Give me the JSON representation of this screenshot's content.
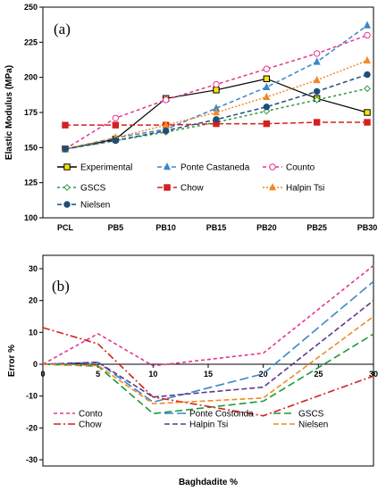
{
  "chart_data": [
    {
      "type": "line",
      "panel_label": "(a)",
      "ylabel": "Elastic Modulus (MPa)",
      "xlabel": "",
      "categories": [
        "PCL",
        "PB5",
        "PB10",
        "PB15",
        "PB20",
        "PB25",
        "PB30"
      ],
      "ylim": [
        100,
        250
      ],
      "yticks": [
        100,
        125,
        150,
        175,
        200,
        225,
        250
      ],
      "grid": false,
      "legend_position": "bottom-inside",
      "series": [
        {
          "name": "Experimental",
          "color": "#000000",
          "dash": "",
          "marker": "square",
          "marker_fill": "#f5e600",
          "values": [
            149,
            156,
            185,
            191,
            199,
            185,
            175
          ]
        },
        {
          "name": "Ponte Castaneda",
          "color": "#3a86c8",
          "dash": "5,3",
          "marker": "triangle",
          "marker_fill": "#3a86c8",
          "values": [
            149,
            157,
            163,
            178,
            193,
            211,
            237
          ]
        },
        {
          "name": "Counto",
          "color": "#e8338f",
          "dash": "4,3",
          "marker": "circle-open",
          "marker_fill": "#ffffff",
          "values": [
            149,
            171,
            184,
            195,
            206,
            217,
            230
          ]
        },
        {
          "name": "GSCS",
          "color": "#2a9a3a",
          "dash": "3,3",
          "marker": "diamond-open",
          "marker_fill": "#ffffff",
          "values": [
            149,
            155,
            161,
            168,
            176,
            184,
            192
          ]
        },
        {
          "name": "Chow",
          "color": "#d42020",
          "dash": "6,3",
          "marker": "square",
          "marker_fill": "#d42020",
          "values": [
            166,
            166,
            166,
            167,
            167,
            168,
            168
          ]
        },
        {
          "name": "Halpin Tsi",
          "color": "#f08a24",
          "dash": "2,2",
          "marker": "triangle",
          "marker_fill": "#f08a24",
          "values": [
            149,
            157,
            166,
            175,
            186,
            198,
            212
          ]
        },
        {
          "name": "Nielsen",
          "color": "#1f4e79",
          "dash": "5,3",
          "marker": "circle",
          "marker_fill": "#1f4e79",
          "values": [
            149,
            155,
            162,
            170,
            179,
            190,
            202
          ]
        }
      ]
    },
    {
      "type": "line",
      "panel_label": "(b)",
      "ylabel": "Error %",
      "xlabel": "Baghdadite %",
      "x": [
        0,
        5,
        10,
        20,
        30
      ],
      "xlim": [
        0,
        30
      ],
      "xticks": [
        0,
        5,
        10,
        15,
        20,
        25,
        30
      ],
      "ylim": [
        -30,
        30
      ],
      "yticks": [
        -30,
        -20,
        -10,
        0,
        10,
        20,
        30
      ],
      "grid": false,
      "legend_position": "bottom-inside",
      "series": [
        {
          "name": "Conto",
          "color": "#e8338f",
          "dash": "4,3",
          "values": [
            0,
            9.6,
            -0.5,
            3.5,
            31
          ]
        },
        {
          "name": "Ponte Costonda",
          "color": "#3a86c8",
          "dash": "10,4",
          "values": [
            0,
            0.6,
            -11.9,
            -3,
            26
          ]
        },
        {
          "name": "GSCS",
          "color": "#1a9a3a",
          "dash": "8,4",
          "values": [
            0,
            -0.6,
            -15.5,
            -11.6,
            9.5
          ]
        },
        {
          "name": "Chow",
          "color": "#d42020",
          "dash": "8,3,2,3",
          "values": [
            11.5,
            6.4,
            -10.3,
            -16.2,
            -3.7
          ]
        },
        {
          "name": "Halpin Tsi",
          "color": "#5a3a8a",
          "dash": "6,3",
          "values": [
            0,
            0.6,
            -10.3,
            -7.2,
            20
          ]
        },
        {
          "name": "Nielsen",
          "color": "#f08a24",
          "dash": "6,3",
          "values": [
            0,
            -0.4,
            -12.4,
            -10.6,
            15
          ]
        }
      ]
    }
  ]
}
